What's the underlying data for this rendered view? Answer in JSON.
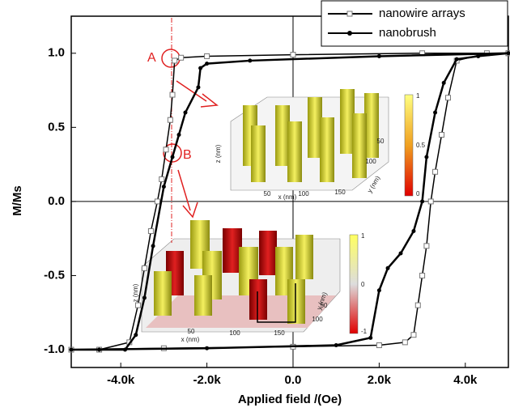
{
  "chart_data": {
    "type": "line",
    "xlabel": "Applied field /(Oe)",
    "ylabel": "M/Ms",
    "xlim": [
      -5150,
      5000
    ],
    "ylim": [
      -1.12,
      1.25
    ],
    "xticks": [
      {
        "value": -4000,
        "label": "-4.0k"
      },
      {
        "value": -2000,
        "label": "-2.0k"
      },
      {
        "value": 0,
        "label": "0.0"
      },
      {
        "value": 2000,
        "label": "2.0k"
      },
      {
        "value": 4000,
        "label": "4.0k"
      }
    ],
    "yticks": [
      {
        "value": 1,
        "label": "1.0"
      },
      {
        "value": 0.5,
        "label": "0.5"
      },
      {
        "value": 0,
        "label": "0.0"
      },
      {
        "value": -0.5,
        "label": "-0.5"
      },
      {
        "value": -1,
        "label": "-1.0"
      }
    ],
    "legend": "upper right",
    "series": [
      {
        "name": "nanowire arrays",
        "color": "#000000",
        "marker": "square",
        "x": [
          5000,
          3000,
          0,
          -2000,
          -2600,
          -2750,
          -2800,
          -2850,
          -2950,
          -3050,
          -3150,
          -3300,
          -3450,
          -3600,
          -3800,
          -4500,
          -5150,
          -3000,
          0,
          2000,
          2600,
          2800,
          2900,
          3000,
          3100,
          3200,
          3300,
          3450,
          3600,
          3800,
          4500,
          5000
        ],
        "values": [
          1.0,
          1.0,
          0.99,
          0.98,
          0.97,
          0.95,
          0.72,
          0.55,
          0.35,
          0.15,
          0.0,
          -0.2,
          -0.45,
          -0.7,
          -0.95,
          -1.0,
          -1.0,
          -0.99,
          -0.98,
          -0.97,
          -0.95,
          -0.9,
          -0.7,
          -0.5,
          -0.3,
          0.0,
          0.2,
          0.45,
          0.7,
          0.95,
          1.0,
          1.0
        ]
      },
      {
        "name": "nanobrush",
        "color": "#000000",
        "marker": "dot",
        "x": [
          5000,
          2000,
          -1000,
          -2000,
          -2150,
          -2200,
          -2500,
          -2650,
          -2800,
          -3000,
          -3250,
          -3450,
          -3650,
          -3900,
          -4500,
          -5150,
          -2000,
          1000,
          1800,
          2000,
          2200,
          2500,
          2800,
          3000,
          3100,
          3300,
          3500,
          3800,
          4300,
          5000
        ],
        "values": [
          1.0,
          0.98,
          0.95,
          0.93,
          0.9,
          0.77,
          0.6,
          0.45,
          0.3,
          0.1,
          -0.3,
          -0.65,
          -0.9,
          -1.0,
          -1.0,
          -1.0,
          -0.99,
          -0.97,
          -0.92,
          -0.6,
          -0.45,
          -0.35,
          -0.2,
          0.0,
          0.3,
          0.6,
          0.8,
          0.96,
          0.98,
          1.0
        ]
      }
    ],
    "annotations": [
      "A",
      "B"
    ],
    "insets": [
      {
        "colorbar_ticks": [
          "1",
          "0.5",
          "0"
        ],
        "axis_labels": [
          "z (nm)",
          "x (nm)",
          "y (nm)"
        ],
        "ticks": [
          "50",
          "100",
          "150",
          "100",
          "50"
        ]
      },
      {
        "colorbar_ticks": [
          "1",
          "0",
          "-1"
        ],
        "axis_labels": [
          "z (nm)",
          "x (nm)",
          "y (nm)"
        ],
        "ticks": [
          "50",
          "100",
          "150",
          "100",
          "50"
        ]
      }
    ]
  }
}
